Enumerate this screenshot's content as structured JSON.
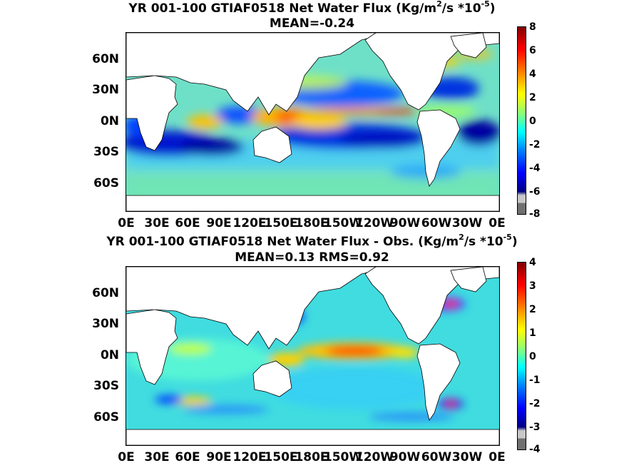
{
  "chart_data": [
    {
      "type": "heatmap",
      "title_line1": "YR 001-100 GTIAF0518  Net Water Flux (Kg/m",
      "title_sup1": "2",
      "title_mid": "/s *10",
      "title_sup2": "-5",
      "title_end": ")",
      "subtitle": "MEAN=-0.24",
      "x_ticks": [
        "0E",
        "30E",
        "60E",
        "90E",
        "120E",
        "150E",
        "180E",
        "150W",
        "120W",
        "90W",
        "60W",
        "30W",
        "0E"
      ],
      "y_ticks": [
        "60N",
        "30N",
        "0N",
        "30S",
        "60S"
      ],
      "colorbar_ticks": [
        "8",
        "6",
        "4",
        "2",
        "0",
        "-2",
        "-4",
        "-6",
        "-8"
      ],
      "clim": [
        -8,
        8
      ],
      "colormap": "jet"
    },
    {
      "type": "heatmap",
      "title_line1": "YR 001-100 GTIAF0518  Net Water Flux - Obs. (Kg/m",
      "title_sup1": "2",
      "title_mid": "/s *10",
      "title_sup2": "-5",
      "title_end": ")",
      "subtitle": "MEAN=0.13 RMS=0.92",
      "x_ticks": [
        "0E",
        "30E",
        "60E",
        "90E",
        "120E",
        "150E",
        "180E",
        "150W",
        "120W",
        "90W",
        "60W",
        "30W",
        "0E"
      ],
      "y_ticks": [
        "60N",
        "30N",
        "0N",
        "30S",
        "60S"
      ],
      "colorbar_ticks": [
        "4",
        "3",
        "2",
        "1",
        "0",
        "-1",
        "-2",
        "-3",
        "-4"
      ],
      "clim": [
        -4,
        4
      ],
      "colormap": "jet"
    }
  ],
  "colors": {
    "ocean_base": "#6fe0c8",
    "land": "#ffffff",
    "colormap_stops": [
      "#800000",
      "#ff0000",
      "#ff8000",
      "#ffff00",
      "#80ff80",
      "#00ffff",
      "#0080ff",
      "#0000ff",
      "#000080",
      "#c8c8c8",
      "#707070"
    ]
  }
}
